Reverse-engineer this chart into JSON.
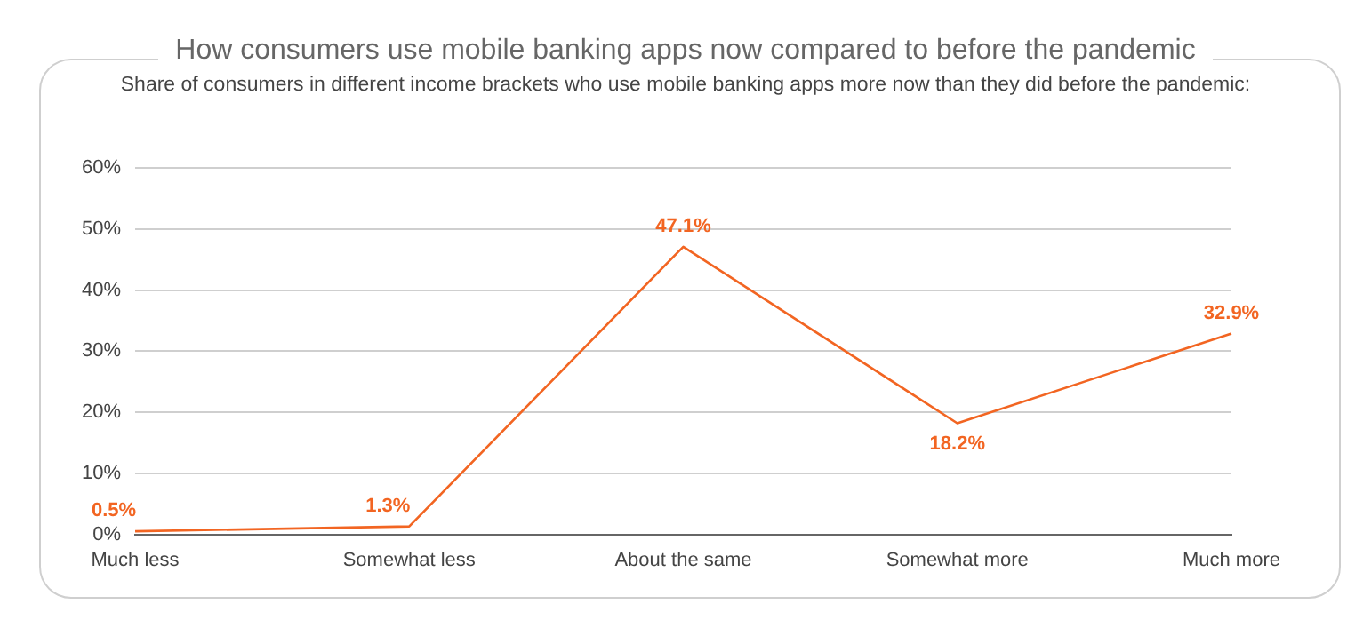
{
  "chart_data": {
    "type": "line",
    "title": "How consumers use mobile banking apps now compared to before the pandemic",
    "subtitle": "Share of consumers in different income brackets who use mobile banking apps more now than they did before the pandemic:",
    "categories": [
      "Much less",
      "Somewhat less",
      "About the same",
      "Somewhat more",
      "Much more"
    ],
    "series": [
      {
        "color": "#f26522",
        "values": [
          0.5,
          1.3,
          47.1,
          18.2,
          32.9
        ]
      }
    ],
    "value_labels": [
      "0.5%",
      "1.3%",
      "47.1%",
      "18.2%",
      "32.9%"
    ],
    "ylim": [
      0,
      60
    ],
    "yticks": [
      {
        "value": 0,
        "label": "0%"
      },
      {
        "value": 10,
        "label": "10%"
      },
      {
        "value": 20,
        "label": "20%"
      },
      {
        "value": 30,
        "label": "30%"
      },
      {
        "value": 40,
        "label": "40%"
      },
      {
        "value": 50,
        "label": "50%"
      },
      {
        "value": 60,
        "label": "60%"
      }
    ],
    "grid": "y",
    "legend": false,
    "marker": "none",
    "line_style": "solid"
  }
}
